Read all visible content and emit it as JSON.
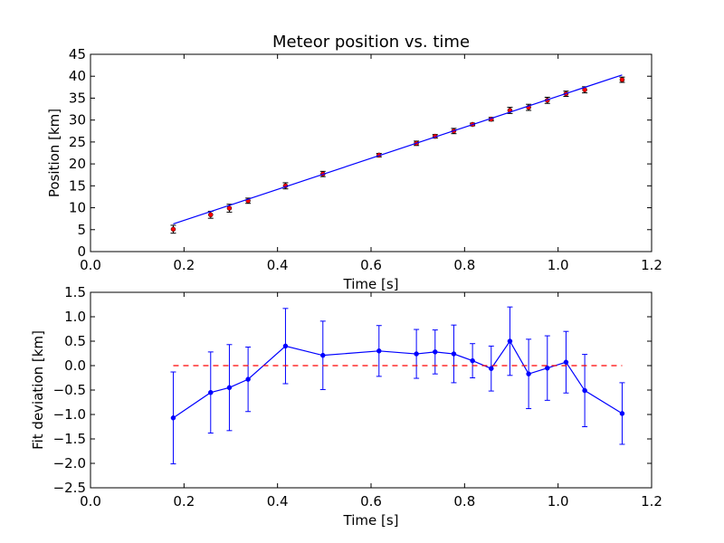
{
  "chart_data": [
    {
      "type": "scatter",
      "title": "Meteor position vs. time",
      "xlabel": "Time [s]",
      "ylabel": "Position [km]",
      "xlim": [
        0.0,
        1.2
      ],
      "ylim": [
        0,
        45
      ],
      "xticks": [
        "0.0",
        "0.2",
        "0.4",
        "0.6",
        "0.8",
        "1.0",
        "1.2"
      ],
      "yticks": [
        "0",
        "5",
        "10",
        "15",
        "20",
        "25",
        "30",
        "35",
        "40",
        "45"
      ],
      "grid": false,
      "series": [
        {
          "kind": "errorbar-points",
          "color": "#ff0000",
          "x": [
            0.177,
            0.257,
            0.297,
            0.337,
            0.417,
            0.497,
            0.617,
            0.697,
            0.737,
            0.777,
            0.817,
            0.857,
            0.897,
            0.937,
            0.977,
            1.017,
            1.057,
            1.137
          ],
          "y": [
            5.1,
            8.4,
            9.9,
            11.6,
            15.0,
            17.7,
            22.0,
            24.7,
            26.3,
            27.5,
            29.0,
            30.2,
            32.2,
            32.9,
            34.5,
            36.0,
            36.9,
            39.2
          ],
          "err": [
            0.9,
            0.8,
            0.9,
            0.6,
            0.7,
            0.6,
            0.4,
            0.5,
            0.4,
            0.6,
            0.3,
            0.4,
            0.7,
            0.7,
            0.7,
            0.6,
            0.7,
            0.6
          ]
        },
        {
          "kind": "fit-line",
          "color": "#0000ff",
          "x": [
            0.177,
            1.137
          ],
          "y": [
            6.3,
            40.3
          ]
        }
      ]
    },
    {
      "type": "line",
      "xlabel": "Time [s]",
      "ylabel": "Fit deviation [km]",
      "xlim": [
        0.0,
        1.2
      ],
      "ylim": [
        -2.5,
        1.5
      ],
      "xticks": [
        "0.0",
        "0.2",
        "0.4",
        "0.6",
        "0.8",
        "1.0",
        "1.2"
      ],
      "yticks": [
        "−2.5",
        "−2.0",
        "−1.5",
        "−1.0",
        "−0.5",
        "0.0",
        "0.5",
        "1.0",
        "1.5"
      ],
      "grid": false,
      "series": [
        {
          "kind": "errorbar-line",
          "color": "#0000ff",
          "x": [
            0.177,
            0.257,
            0.297,
            0.337,
            0.417,
            0.497,
            0.617,
            0.697,
            0.737,
            0.777,
            0.817,
            0.857,
            0.897,
            0.937,
            0.977,
            1.017,
            1.057,
            1.137
          ],
          "y": [
            -1.07,
            -0.55,
            -0.45,
            -0.28,
            0.4,
            0.21,
            0.3,
            0.24,
            0.28,
            0.24,
            0.1,
            -0.06,
            0.5,
            -0.17,
            -0.05,
            0.07,
            -0.51,
            -0.98
          ],
          "err": [
            0.94,
            0.83,
            0.88,
            0.66,
            0.77,
            0.7,
            0.52,
            0.5,
            0.45,
            0.59,
            0.35,
            0.46,
            0.7,
            0.71,
            0.66,
            0.63,
            0.74,
            0.63
          ]
        },
        {
          "kind": "zero-reference",
          "color": "#ff0000",
          "x": [
            0.177,
            1.137
          ],
          "y": [
            0,
            0
          ]
        }
      ]
    }
  ]
}
